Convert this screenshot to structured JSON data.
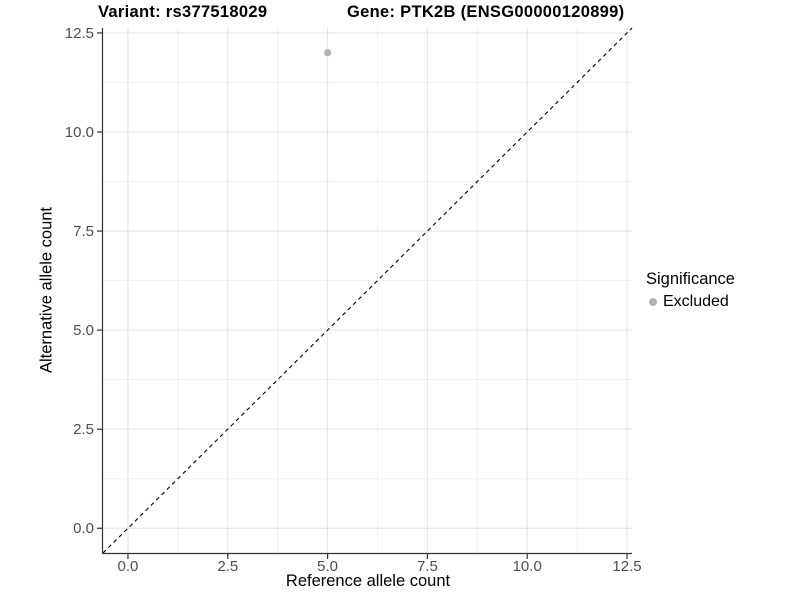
{
  "titles": {
    "variant": "Variant: rs377518029",
    "gene": "Gene: PTK2B (ENSG00000120899)"
  },
  "axes": {
    "x_label": "Reference allele count",
    "y_label": "Alternative allele count"
  },
  "legend": {
    "title": "Significance",
    "items": [
      {
        "label": "Excluded",
        "color": "#b3b3b3"
      }
    ]
  },
  "chart_data": {
    "type": "scatter",
    "title_left": "Variant: rs377518029",
    "title_right": "Gene: PTK2B (ENSG00000120899)",
    "xlabel": "Reference allele count",
    "ylabel": "Alternative allele count",
    "xlim": [
      -0.625,
      12.625
    ],
    "ylim": [
      -0.625,
      12.625
    ],
    "x_ticks": [
      0,
      2.5,
      5,
      7.5,
      10,
      12.5
    ],
    "x_tick_labels": [
      "0.0",
      "2.5",
      "5.0",
      "7.5",
      "10.0",
      "12.5"
    ],
    "y_ticks": [
      0,
      2.5,
      5,
      7.5,
      10,
      12.5
    ],
    "y_tick_labels": [
      "0.0",
      "2.5",
      "5.0",
      "7.5",
      "10.0",
      "12.5"
    ],
    "grid": "major-and-minor",
    "legend_position": "right",
    "series": [
      {
        "name": "Excluded",
        "color": "#b3b3b3",
        "points": [
          {
            "x": 5,
            "y": 12
          }
        ]
      }
    ],
    "reference_line": {
      "kind": "identity y=x",
      "style": "dashed",
      "color": "#000000"
    }
  },
  "colors": {
    "background": "#ffffff",
    "grid_major": "#e4e4e4",
    "grid_minor": "#f1f1f1",
    "axis_line": "#333333",
    "tick_label": "#4d4d4d",
    "point": "#b3b3b3"
  }
}
